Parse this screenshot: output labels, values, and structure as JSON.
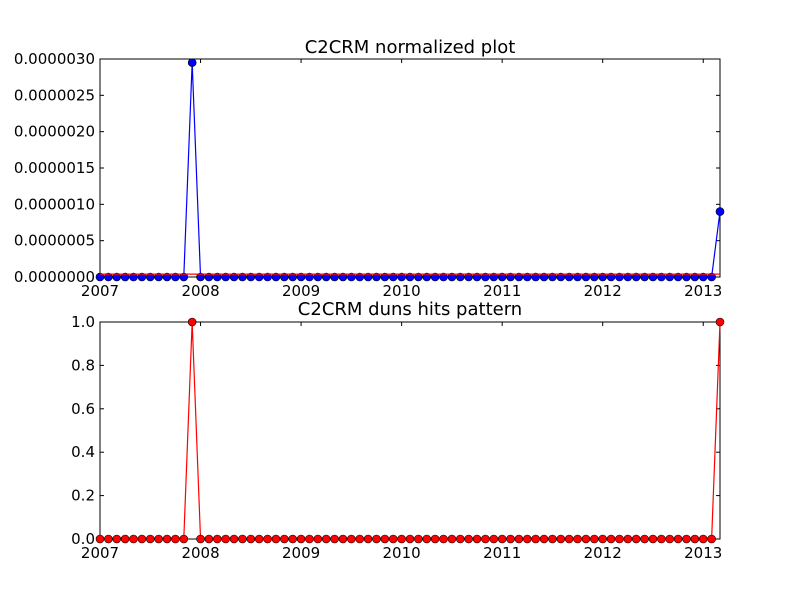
{
  "figure": {
    "background": "#ffffff"
  },
  "chart_data": [
    {
      "type": "line",
      "title": "C2CRM normalized plot",
      "xlabel": "",
      "ylabel": "",
      "xlim": [
        "2007-01",
        "2013-03"
      ],
      "ylim": [
        0,
        3e-06
      ],
      "grid": false,
      "legend": "none",
      "x_ticks": [
        "2007",
        "2008",
        "2009",
        "2010",
        "2011",
        "2012",
        "2013"
      ],
      "y_ticks": [
        "0.0000000",
        "0.0000005",
        "0.0000010",
        "0.0000015",
        "0.0000020",
        "0.0000025",
        "0.0000030"
      ],
      "series": [
        {
          "color": "#0000ff",
          "marker": "circle",
          "x": [
            "2007-01",
            "2007-02",
            "2007-03",
            "2007-04",
            "2007-05",
            "2007-06",
            "2007-07",
            "2007-08",
            "2007-09",
            "2007-10",
            "2007-11",
            "2007-12",
            "2008-01",
            "2008-02",
            "2008-03",
            "2008-04",
            "2008-05",
            "2008-06",
            "2008-07",
            "2008-08",
            "2008-09",
            "2008-10",
            "2008-11",
            "2008-12",
            "2009-01",
            "2009-02",
            "2009-03",
            "2009-04",
            "2009-05",
            "2009-06",
            "2009-07",
            "2009-08",
            "2009-09",
            "2009-10",
            "2009-11",
            "2009-12",
            "2010-01",
            "2010-02",
            "2010-03",
            "2010-04",
            "2010-05",
            "2010-06",
            "2010-07",
            "2010-08",
            "2010-09",
            "2010-10",
            "2010-11",
            "2010-12",
            "2011-01",
            "2011-02",
            "2011-03",
            "2011-04",
            "2011-05",
            "2011-06",
            "2011-07",
            "2011-08",
            "2011-09",
            "2011-10",
            "2011-11",
            "2011-12",
            "2012-01",
            "2012-02",
            "2012-03",
            "2012-04",
            "2012-05",
            "2012-06",
            "2012-07",
            "2012-08",
            "2012-09",
            "2012-10",
            "2012-11",
            "2012-12",
            "2013-01",
            "2013-02",
            "2013-03"
          ],
          "values": [
            0,
            0,
            0,
            0,
            0,
            0,
            0,
            0,
            0,
            0,
            0,
            2.95e-06,
            0,
            0,
            0,
            0,
            0,
            0,
            0,
            0,
            0,
            0,
            0,
            0,
            0,
            0,
            0,
            0,
            0,
            0,
            0,
            0,
            0,
            0,
            0,
            0,
            0,
            0,
            0,
            0,
            0,
            0,
            0,
            0,
            0,
            0,
            0,
            0,
            0,
            0,
            0,
            0,
            0,
            0,
            0,
            0,
            0,
            0,
            0,
            0,
            0,
            0,
            0,
            0,
            0,
            0,
            0,
            0,
            0,
            0,
            0,
            0,
            0,
            0,
            9e-07
          ]
        },
        {
          "color": "#ff0000",
          "marker": "none",
          "x": [
            "2007-01",
            "2013-03"
          ],
          "values": [
            4e-08,
            4e-08
          ]
        }
      ]
    },
    {
      "type": "line",
      "title": "C2CRM duns hits pattern",
      "xlabel": "",
      "ylabel": "",
      "xlim": [
        "2007-01",
        "2013-03"
      ],
      "ylim": [
        0,
        1.0
      ],
      "grid": false,
      "legend": "none",
      "x_ticks": [
        "2007",
        "2008",
        "2009",
        "2010",
        "2011",
        "2012",
        "2013"
      ],
      "y_ticks": [
        "0.0",
        "0.2",
        "0.4",
        "0.6",
        "0.8",
        "1.0"
      ],
      "series": [
        {
          "color": "#ff0000",
          "marker": "circle",
          "x": [
            "2007-01",
            "2007-02",
            "2007-03",
            "2007-04",
            "2007-05",
            "2007-06",
            "2007-07",
            "2007-08",
            "2007-09",
            "2007-10",
            "2007-11",
            "2007-12",
            "2008-01",
            "2008-02",
            "2008-03",
            "2008-04",
            "2008-05",
            "2008-06",
            "2008-07",
            "2008-08",
            "2008-09",
            "2008-10",
            "2008-11",
            "2008-12",
            "2009-01",
            "2009-02",
            "2009-03",
            "2009-04",
            "2009-05",
            "2009-06",
            "2009-07",
            "2009-08",
            "2009-09",
            "2009-10",
            "2009-11",
            "2009-12",
            "2010-01",
            "2010-02",
            "2010-03",
            "2010-04",
            "2010-05",
            "2010-06",
            "2010-07",
            "2010-08",
            "2010-09",
            "2010-10",
            "2010-11",
            "2010-12",
            "2011-01",
            "2011-02",
            "2011-03",
            "2011-04",
            "2011-05",
            "2011-06",
            "2011-07",
            "2011-08",
            "2011-09",
            "2011-10",
            "2011-11",
            "2011-12",
            "2012-01",
            "2012-02",
            "2012-03",
            "2012-04",
            "2012-05",
            "2012-06",
            "2012-07",
            "2012-08",
            "2012-09",
            "2012-10",
            "2012-11",
            "2012-12",
            "2013-01",
            "2013-02",
            "2013-03"
          ],
          "values": [
            0,
            0,
            0,
            0,
            0,
            0,
            0,
            0,
            0,
            0,
            0,
            1,
            0,
            0,
            0,
            0,
            0,
            0,
            0,
            0,
            0,
            0,
            0,
            0,
            0,
            0,
            0,
            0,
            0,
            0,
            0,
            0,
            0,
            0,
            0,
            0,
            0,
            0,
            0,
            0,
            0,
            0,
            0,
            0,
            0,
            0,
            0,
            0,
            0,
            0,
            0,
            0,
            0,
            0,
            0,
            0,
            0,
            0,
            0,
            0,
            0,
            0,
            0,
            0,
            0,
            0,
            0,
            0,
            0,
            0,
            0,
            0,
            0,
            0,
            1
          ]
        }
      ]
    }
  ]
}
